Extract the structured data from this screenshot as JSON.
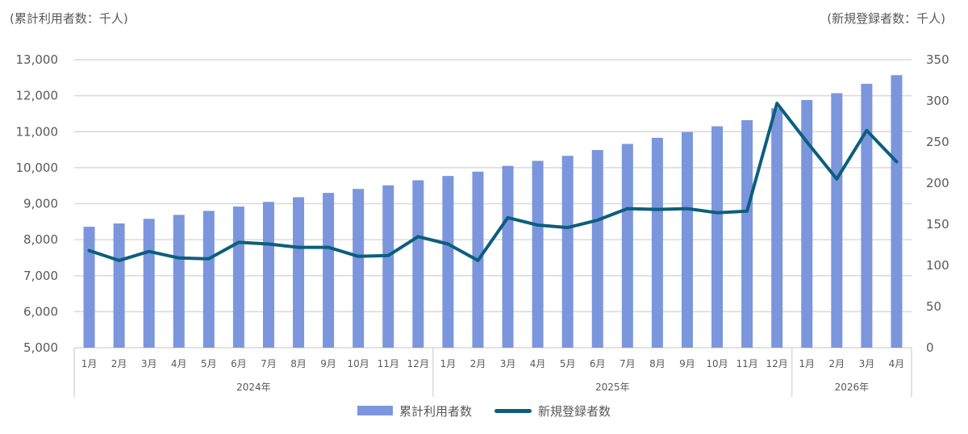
{
  "labels": {
    "left_unit": "(累計利用者数：千人)",
    "right_unit": "(新規登録者数：千人)"
  },
  "chart_data": {
    "type": "bar+line",
    "categories": [
      "1月",
      "2月",
      "3月",
      "4月",
      "5月",
      "6月",
      "7月",
      "8月",
      "9月",
      "10月",
      "11月",
      "12月",
      "1月",
      "2月",
      "3月",
      "4月",
      "5月",
      "6月",
      "7月",
      "8月",
      "9月",
      "10月",
      "11月",
      "12月",
      "1月",
      "2月",
      "3月",
      "4月"
    ],
    "years": [
      {
        "label": "2024年",
        "count": 12
      },
      {
        "label": "2025年",
        "count": 12
      },
      {
        "label": "2026年",
        "count": 4
      }
    ],
    "series": [
      {
        "name": "累計利用者数",
        "type": "bar",
        "axis": "left",
        "color": "#7b96dc",
        "values": [
          8360,
          8450,
          8580,
          8690,
          8800,
          8920,
          9050,
          9180,
          9300,
          9410,
          9510,
          9650,
          9770,
          9890,
          10050,
          10190,
          10330,
          10490,
          10660,
          10830,
          10990,
          11150,
          11320,
          11650,
          11880,
          12070,
          12330,
          12570
        ]
      },
      {
        "name": "新規登録者数",
        "type": "line",
        "axis": "right",
        "color": "#0d5e7e",
        "values": [
          118,
          106,
          117,
          109,
          108,
          128,
          126,
          122,
          122,
          111,
          112,
          135,
          126,
          106,
          158,
          149,
          146,
          155,
          169,
          168,
          169,
          164,
          166,
          297,
          250,
          205,
          264,
          226
        ]
      }
    ],
    "y_left": {
      "min": 5000,
      "max": 13000,
      "step": 1000,
      "tick_labels": [
        "5,000",
        "6,000",
        "7,000",
        "8,000",
        "9,000",
        "10,000",
        "11,000",
        "12,000",
        "13,000"
      ]
    },
    "y_right": {
      "min": 0,
      "max": 350,
      "step": 50,
      "tick_labels": [
        "0",
        "50",
        "100",
        "150",
        "200",
        "250",
        "300",
        "350"
      ]
    },
    "grid": true,
    "legend_position": "bottom-center"
  }
}
